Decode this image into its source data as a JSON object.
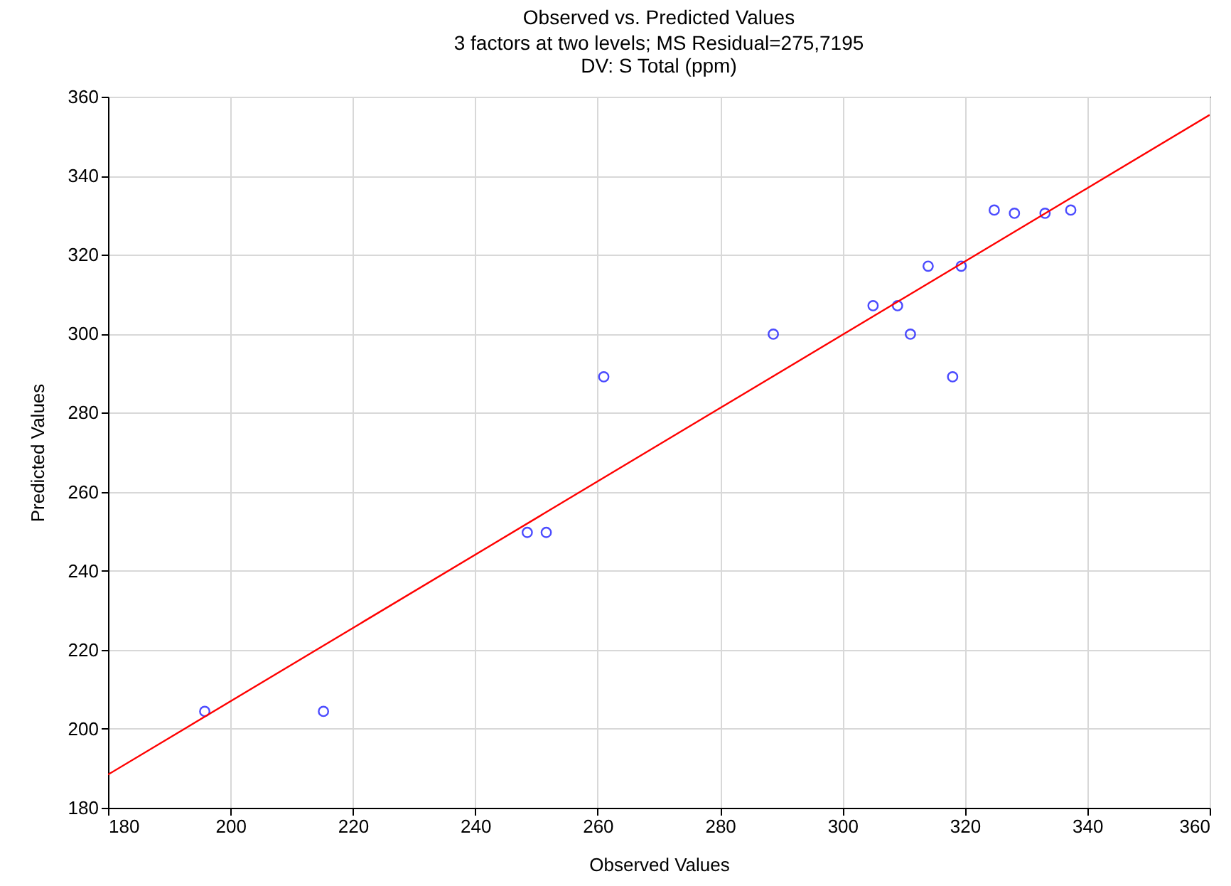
{
  "chart_data": {
    "type": "scatter",
    "title": "Observed vs. Predicted Values",
    "subtitle": [
      "3 factors at two levels; MS Residual=275,7195",
      "DV: S Total (ppm)"
    ],
    "xlabel": "Observed Values",
    "ylabel": "Predicted Values",
    "xlim": [
      180,
      360
    ],
    "xticks": [
      180,
      200,
      220,
      240,
      260,
      280,
      300,
      320,
      340,
      360
    ],
    "ylim": [
      180,
      360
    ],
    "yticks": [
      180,
      200,
      220,
      240,
      260,
      280,
      300,
      320,
      340,
      360
    ],
    "grid": true,
    "series": [
      {
        "color": "#0000ff",
        "marker": "circle",
        "x": [
          195.8,
          215.2,
          248.5,
          251.6,
          261,
          288.7,
          305,
          309,
          311.1,
          314,
          318,
          319.4,
          324.8,
          328.1,
          333.1,
          337.3
        ],
        "values": [
          204.4,
          204.4,
          249.7,
          249.7,
          289.1,
          299.9,
          307.1,
          307.1,
          299.9,
          317.1,
          289.1,
          317.1,
          331.3,
          330.5,
          330.5,
          331.3
        ]
      },
      {
        "type": "line",
        "marker": "none",
        "color": "#ff0000",
        "x": [
          180,
          360
        ],
        "values": [
          188.4,
          355.4
        ]
      }
    ]
  }
}
